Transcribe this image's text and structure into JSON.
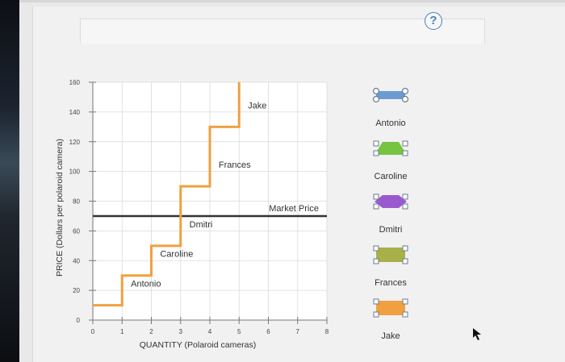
{
  "help": {
    "label": "?"
  },
  "chart_data": {
    "type": "line",
    "title": "",
    "xlabel": "QUANTITY (Polaroid cameras)",
    "ylabel": "PRICE (Dollars per polaroid camera)",
    "xlim": [
      0,
      8
    ],
    "ylim": [
      0,
      160
    ],
    "x_ticks": [
      0,
      1,
      2,
      3,
      4,
      5,
      6,
      7,
      8
    ],
    "y_ticks": [
      0,
      20,
      40,
      60,
      80,
      100,
      120,
      140,
      160
    ],
    "supply_step_curve": {
      "points": [
        [
          0,
          10
        ],
        [
          1,
          10
        ],
        [
          1,
          30
        ],
        [
          2,
          30
        ],
        [
          2,
          50
        ],
        [
          3,
          50
        ],
        [
          3,
          90
        ],
        [
          4,
          90
        ],
        [
          4,
          130
        ],
        [
          5,
          130
        ],
        [
          5,
          160
        ]
      ],
      "color": "#f0a040"
    },
    "segment_labels": [
      {
        "text": "Antonio",
        "x": 1.3,
        "y": 10
      },
      {
        "text": "Caroline",
        "x": 2.3,
        "y": 30
      },
      {
        "text": "Dmitri",
        "x": 3.3,
        "y": 50
      },
      {
        "text": "Frances",
        "x": 4.3,
        "y": 90
      },
      {
        "text": "Jake",
        "x": 5.3,
        "y": 130
      }
    ],
    "market_price": {
      "label": "Market Price",
      "value": 70,
      "color": "#333333"
    }
  },
  "legend": [
    {
      "name": "Antonio",
      "color": "#6b9bd2",
      "shape": "rectangle"
    },
    {
      "name": "Caroline",
      "color": "#76c442",
      "shape": "triangle-pair"
    },
    {
      "name": "Dmitri",
      "color": "#9b59d0",
      "shape": "diamond"
    },
    {
      "name": "Frances",
      "color": "#a8b04a",
      "shape": "square"
    },
    {
      "name": "Jake",
      "color": "#f0a040",
      "shape": "square"
    }
  ]
}
